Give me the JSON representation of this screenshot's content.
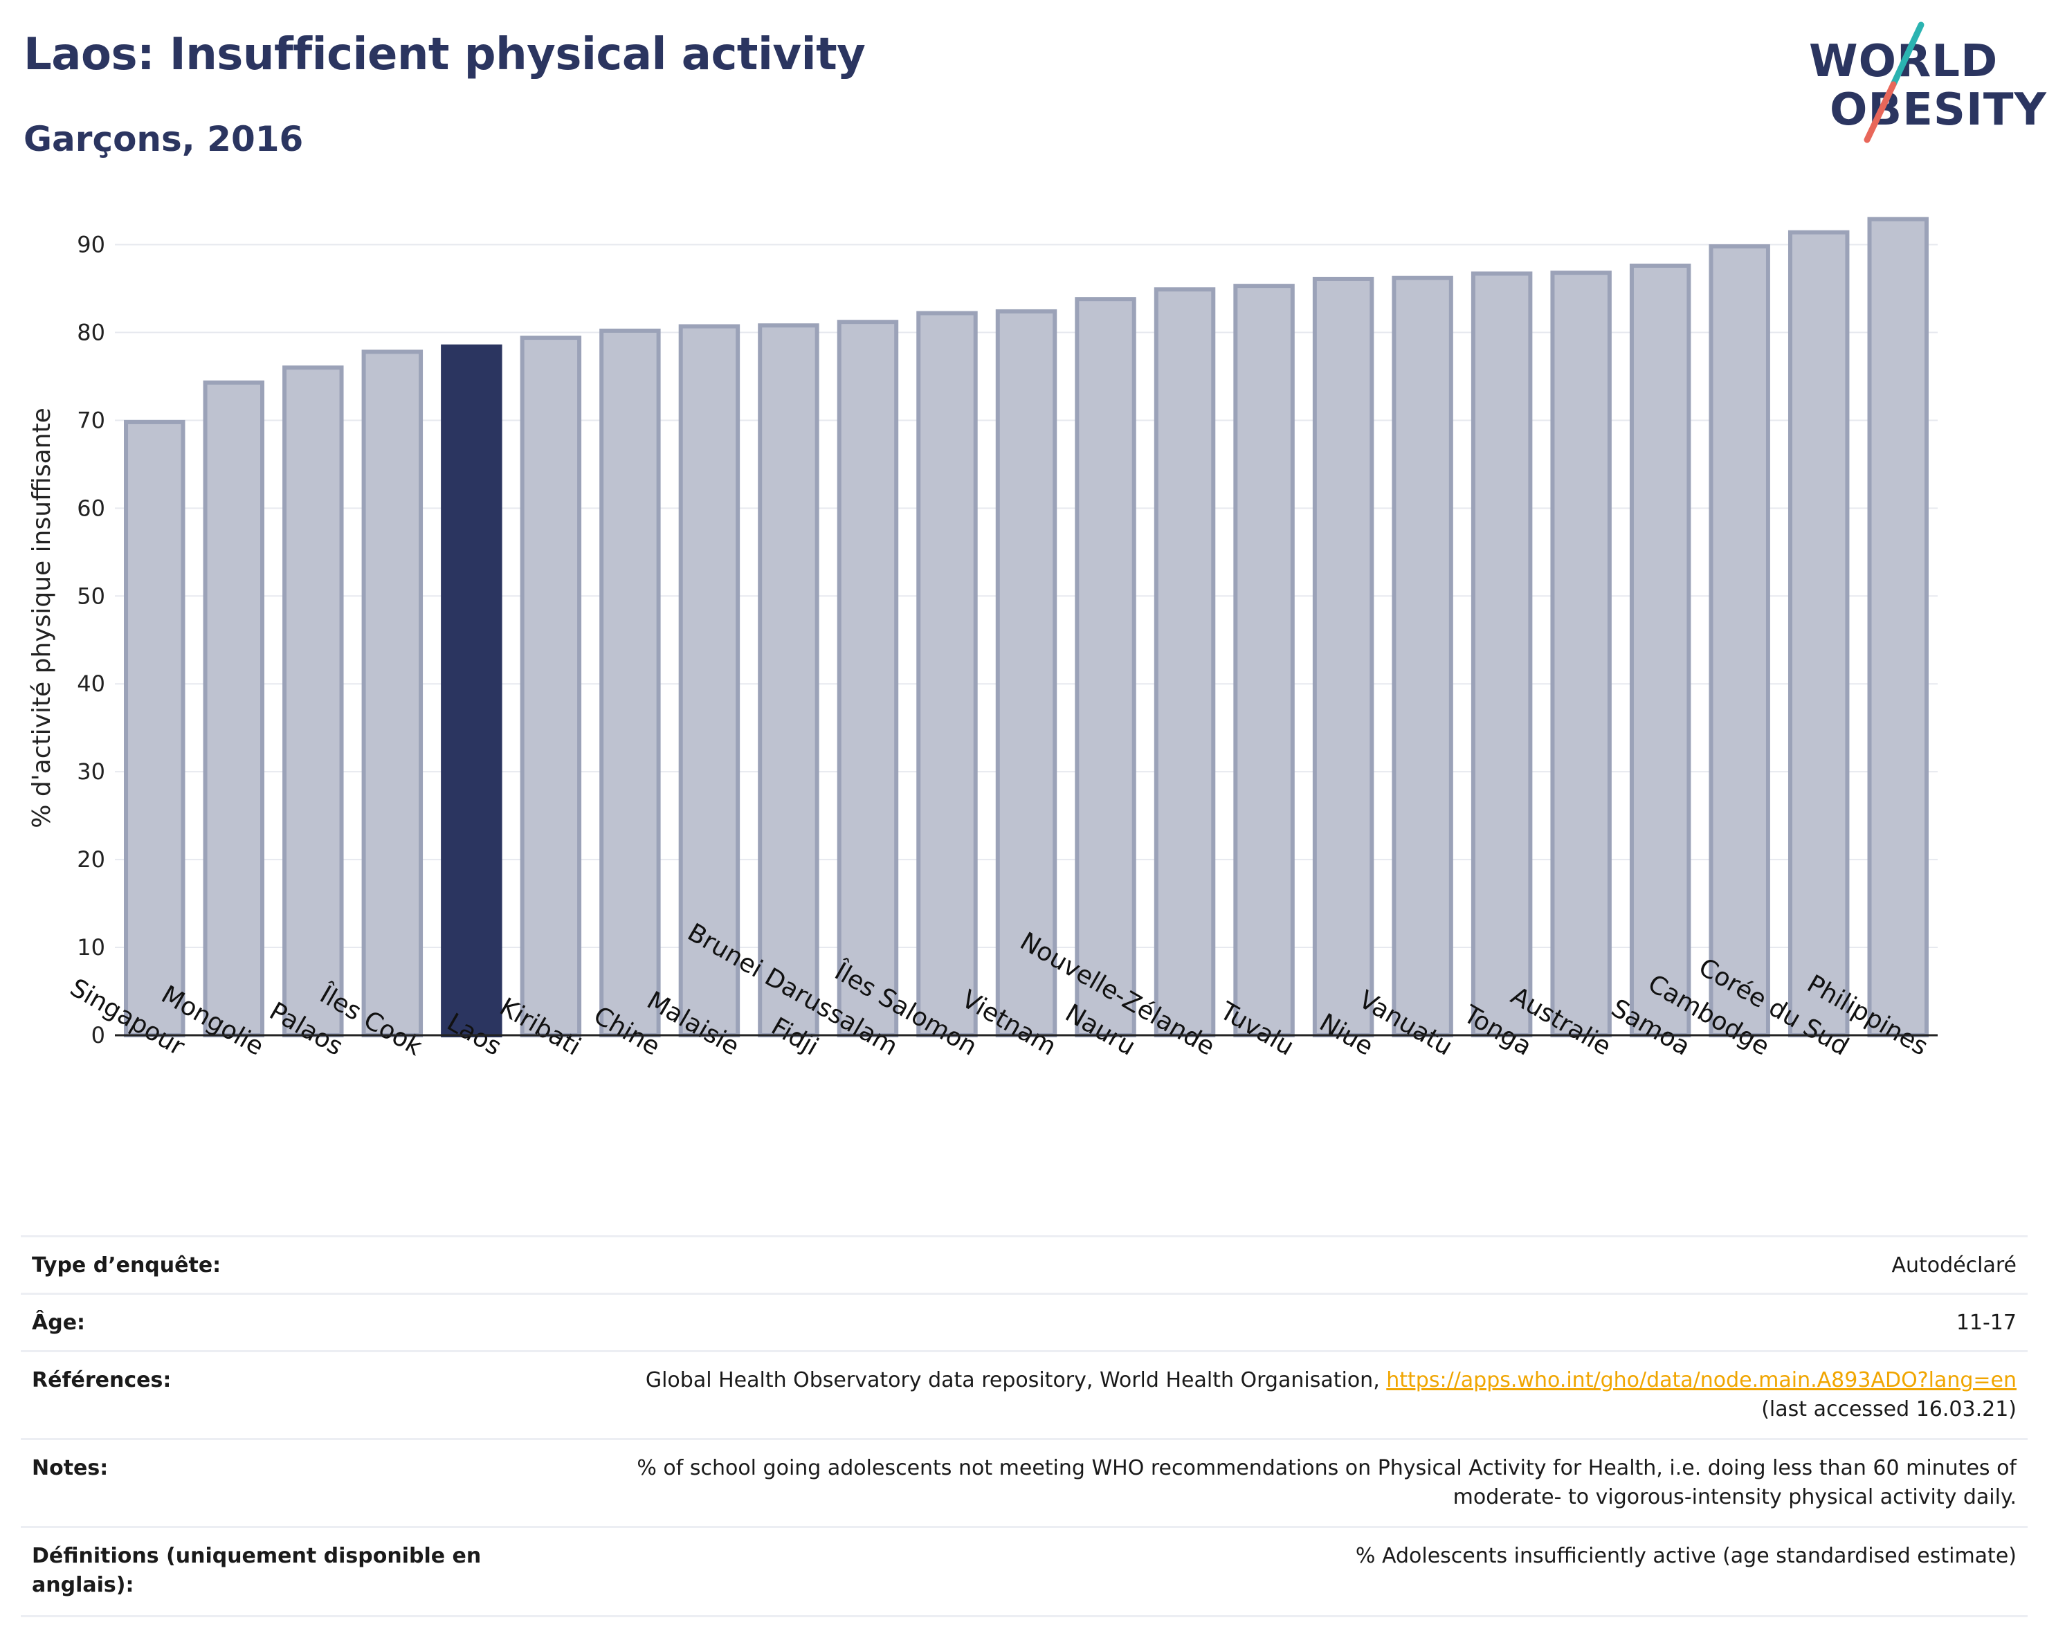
{
  "header": {
    "title": "Laos: Insufficient physical activity",
    "subtitle": "Garçons, 2016"
  },
  "logo": {
    "line1": "WORLD",
    "line2": "OBESITY"
  },
  "colors": {
    "highlight": "#2b3560",
    "bar_fill": "#bec2d0",
    "bar_stroke": "#9ba2b8",
    "grid": "#e7e9ef",
    "accent_teal": "#2bb3b1",
    "accent_coral": "#e8675a",
    "link": "#f0a500"
  },
  "chart_data": {
    "type": "bar",
    "ylabel": "% d'activité physique insuffisante",
    "ylim": [
      0,
      95
    ],
    "yticks": [
      0,
      10,
      20,
      30,
      40,
      50,
      60,
      70,
      80,
      90
    ],
    "grid": true,
    "highlight_category": "Laos",
    "categories": [
      "Singapour",
      "Mongolie",
      "Palaos",
      "Îles Cook",
      "Laos",
      "Kiribati",
      "Chine",
      "Malaisie",
      "Fidji",
      "Brunei Darussalam",
      "Îles Salomon",
      "Vietnam",
      "Nauru",
      "Nouvelle-Zélande",
      "Tuvalu",
      "Niue",
      "Vanuatu",
      "Tonga",
      "Australie",
      "Samoa",
      "Cambodge",
      "Corée du Sud",
      "Philippines"
    ],
    "values": [
      69.8,
      74.3,
      76.0,
      77.8,
      78.4,
      79.4,
      80.2,
      80.7,
      80.8,
      81.2,
      82.2,
      82.4,
      83.8,
      84.9,
      85.3,
      86.1,
      86.2,
      86.7,
      86.8,
      87.6,
      89.8,
      91.4,
      92.9
    ]
  },
  "info": {
    "survey_type": {
      "label": "Type d’enquête:",
      "value": "Autodéclaré"
    },
    "age": {
      "label": "Âge:",
      "value": "11-17"
    },
    "references": {
      "label": "Références:",
      "text": "Global Health Observatory data repository, World Health Organisation, ",
      "link": "https://apps.who.int/gho/data/node.main.A893ADO?lang=en",
      "accessed": "(last accessed 16.03.21)"
    },
    "notes": {
      "label": "Notes:",
      "line1": "% of school going adolescents not meeting WHO recommendations on Physical Activity for Health, i.e. doing less than 60 minutes of",
      "line2": "moderate- to vigorous-intensity physical activity daily."
    },
    "definitions": {
      "label_line1": "Définitions (uniquement disponible en",
      "label_line2": "anglais):",
      "value": "% Adolescents insufficiently active (age standardised estimate)"
    }
  }
}
